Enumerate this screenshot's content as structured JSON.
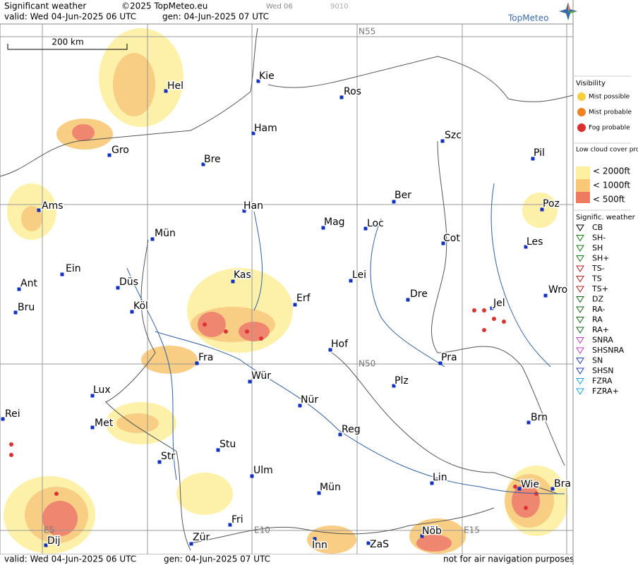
{
  "header": {
    "title": "Significant weather",
    "copyright": "©2025 TopMeteo.eu",
    "run": "Wed 06",
    "code": "9010",
    "valid": "valid:  Wed  04-Jun-2025  06 UTC",
    "generated": "gen: 04-Jun-2025 07 UTC",
    "logo": "TopMeteo"
  },
  "scale": "200 km",
  "grid_labels": [
    "N55",
    "N50",
    "E5",
    "E10",
    "E15"
  ],
  "cities": [
    {
      "name": "Kie"
    },
    {
      "name": "Ros"
    },
    {
      "name": "Ham"
    },
    {
      "name": "Szc"
    },
    {
      "name": "Pil"
    },
    {
      "name": "Hel"
    },
    {
      "name": "Gro"
    },
    {
      "name": "Bre"
    },
    {
      "name": "Ber"
    },
    {
      "name": "Poz"
    },
    {
      "name": "Ams"
    },
    {
      "name": "Han"
    },
    {
      "name": "Mag"
    },
    {
      "name": "Loc"
    },
    {
      "name": "Cot"
    },
    {
      "name": "Les"
    },
    {
      "name": "Mün"
    },
    {
      "name": "Ein"
    },
    {
      "name": "Kas"
    },
    {
      "name": "Lei"
    },
    {
      "name": "Ant"
    },
    {
      "name": "Düs"
    },
    {
      "name": "Wro"
    },
    {
      "name": "Dre"
    },
    {
      "name": "Erf"
    },
    {
      "name": "Bru"
    },
    {
      "name": "Köl"
    },
    {
      "name": "Jel"
    },
    {
      "name": "Hof"
    },
    {
      "name": "Fra"
    },
    {
      "name": "Pra"
    },
    {
      "name": "Wür"
    },
    {
      "name": "Plz"
    },
    {
      "name": "Lux"
    },
    {
      "name": "Nür"
    },
    {
      "name": "Rei"
    },
    {
      "name": "Met"
    },
    {
      "name": "Brn"
    },
    {
      "name": "Reg"
    },
    {
      "name": "Stu"
    },
    {
      "name": "Str"
    },
    {
      "name": "Ulm"
    },
    {
      "name": "Lin"
    },
    {
      "name": "Wie"
    },
    {
      "name": "Bra"
    },
    {
      "name": "Mün"
    },
    {
      "name": "Fri"
    },
    {
      "name": "Nöb"
    },
    {
      "name": "Inn"
    },
    {
      "name": "ZaS"
    },
    {
      "name": "Zür"
    },
    {
      "name": "Dij"
    }
  ],
  "legend": {
    "visibility_title": "Visibility",
    "visibility": [
      "Mist possible",
      "Mist probable",
      "Fog probable"
    ],
    "cloud_title": "Low cloud cover probable",
    "cloud": [
      "< 2000ft",
      "< 1000ft",
      "<   500ft"
    ],
    "weather_title": "Signific. weather",
    "weather": [
      "CB",
      "SH-",
      "SH",
      "SH+",
      "TS-",
      "TS",
      "TS+",
      "DZ",
      "RA-",
      "RA",
      "RA+",
      "SNRA",
      "SHSNRA",
      "SN",
      "SHSN",
      "FZRA",
      "FZRA+"
    ]
  },
  "footer": {
    "valid": "valid:  Wed  04-Jun-2025  06 UTC",
    "generated": "gen: 04-Jun-2025  07 UTC",
    "note": "not for air navigation purposes"
  }
}
